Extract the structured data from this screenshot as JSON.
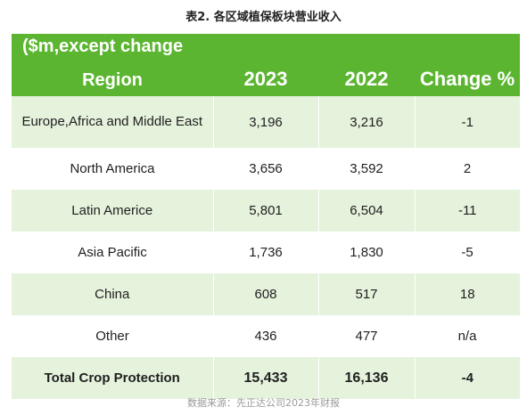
{
  "caption": "表2. 各区域植保板块营业收入",
  "header": {
    "note": "($m,except change",
    "region": "Region",
    "year_2023": "2023",
    "year_2022": "2022",
    "change": "Change %"
  },
  "rows": [
    {
      "region": "Europe,Africa and Middle East",
      "y2023": "3,196",
      "y2022": "3,216",
      "change": "-1"
    },
    {
      "region": "North America",
      "y2023": "3,656",
      "y2022": "3,592",
      "change": "2"
    },
    {
      "region": "Latin Americe",
      "y2023": "5,801",
      "y2022": "6,504",
      "change": "-11"
    },
    {
      "region": "Asia Pacific",
      "y2023": "1,736",
      "y2022": "1,830",
      "change": "-5"
    },
    {
      "region": "China",
      "y2023": "608",
      "y2022": "517",
      "change": "18"
    },
    {
      "region": "Other",
      "y2023": "436",
      "y2022": "477",
      "change": "n/a"
    }
  ],
  "total": {
    "region": "Total Crop Protection",
    "y2023": "15,433",
    "y2022": "16,136",
    "change": "-4"
  },
  "source": "数据来源：先正达公司2023年财报",
  "colors": {
    "header_green": "#5cb531",
    "row_tint": "#e5f2dc",
    "header_text": "#ffffff"
  }
}
